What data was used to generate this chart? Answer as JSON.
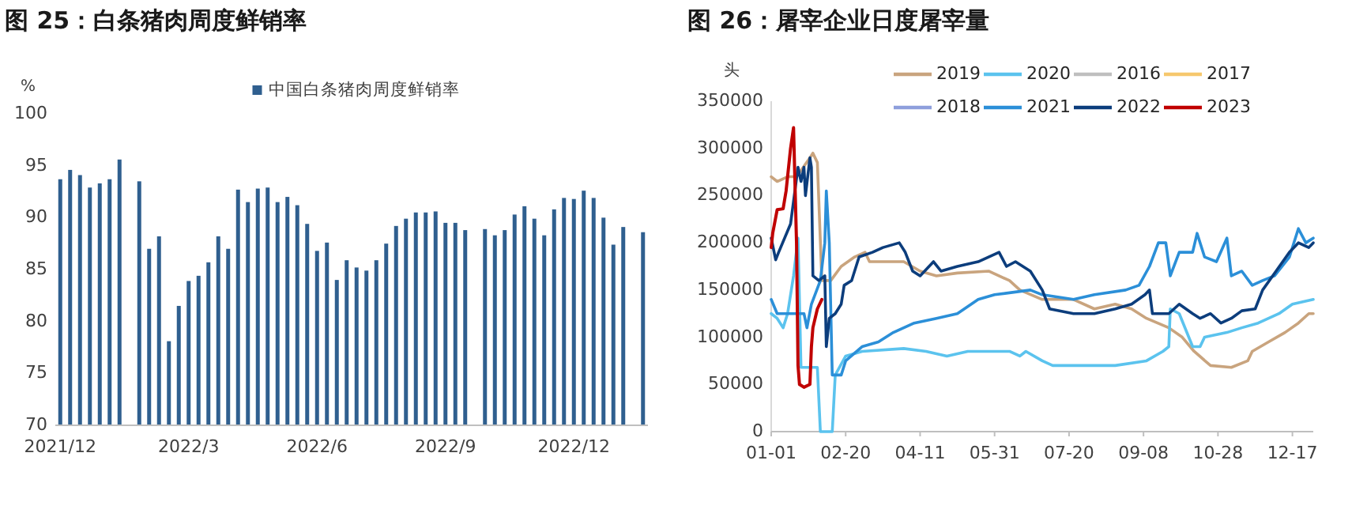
{
  "chart_data": [
    {
      "type": "bar",
      "title": "图 25：白条猪肉周度鲜销率",
      "ylabel": "%",
      "legend": "top",
      "categories": [
        "2021/12",
        null,
        null,
        null,
        null,
        null,
        null,
        null,
        null,
        null,
        null,
        null,
        null,
        "2022/3",
        null,
        null,
        null,
        null,
        null,
        null,
        null,
        null,
        null,
        null,
        null,
        null,
        "2022/6",
        null,
        null,
        null,
        null,
        null,
        null,
        null,
        null,
        null,
        null,
        null,
        null,
        "2022/9",
        null,
        null,
        null,
        null,
        null,
        null,
        null,
        null,
        null,
        null,
        null,
        null,
        "2022/12",
        null,
        null,
        null,
        null,
        null,
        null,
        null
      ],
      "series": [
        {
          "name": "中国白条猪肉周度鲜销率",
          "color": "#2f5f8f",
          "values": [
            93.7,
            94.6,
            94.1,
            92.9,
            93.3,
            93.7,
            95.6,
            null,
            93.5,
            87.0,
            88.2,
            78.1,
            81.5,
            83.9,
            84.4,
            85.7,
            88.2,
            87.0,
            92.7,
            91.5,
            92.8,
            92.9,
            91.5,
            92.0,
            91.2,
            89.4,
            86.8,
            87.6,
            84.0,
            85.9,
            85.2,
            84.9,
            85.9,
            87.5,
            89.2,
            89.9,
            90.5,
            90.5,
            90.6,
            89.5,
            89.5,
            88.8,
            null,
            88.9,
            88.3,
            88.8,
            90.3,
            91.1,
            89.9,
            88.3,
            90.8,
            91.9,
            91.8,
            92.6,
            91.9,
            90.0,
            87.4,
            89.1,
            null,
            88.6
          ]
        }
      ],
      "ylim": [
        70,
        100
      ],
      "yticks": [
        70,
        75,
        80,
        85,
        90,
        95,
        100
      ]
    },
    {
      "type": "line",
      "title": "图 26：屠宰企业日度屠宰量",
      "ylabel": "头",
      "legend": "top",
      "xlim": [
        "--01-01",
        "--12-31"
      ],
      "xticks": [
        {
          "value": "--01-01",
          "label": "01-01"
        },
        {
          "value": "--02-20",
          "label": "02-20"
        },
        {
          "value": "--04-11",
          "label": "04-11"
        },
        {
          "value": "--05-31",
          "label": "05-31"
        },
        {
          "value": "--07-20",
          "label": "07-20"
        },
        {
          "value": "--09-08",
          "label": "09-08"
        },
        {
          "value": "--10-28",
          "label": "10-28"
        },
        {
          "value": "--12-17",
          "label": "12-17"
        }
      ],
      "ylim": [
        0,
        350000
      ],
      "yticks": [
        0,
        50000,
        100000,
        150000,
        200000,
        250000,
        300000,
        350000
      ],
      "series": [
        {
          "name": "2019",
          "color": "#c9a47e",
          "x": [
            "--01-01",
            "--01-05",
            "--01-12",
            "--01-18",
            "--01-27",
            "--01-29",
            "--02-01",
            "--02-04",
            "--02-10",
            "--02-17",
            "--02-26",
            "--03-05",
            "--03-08",
            "--03-31",
            "--04-11",
            "--04-22",
            "--05-06",
            "--05-27",
            "--06-10",
            "--06-17",
            "--07-02",
            "--07-23",
            "--08-06",
            "--08-20",
            "--08-31",
            "--09-10",
            "--09-25",
            "--10-04",
            "--10-12",
            "--10-23",
            "--11-06",
            "--11-17",
            "--11-20",
            "--12-01",
            "--12-12",
            "--12-21",
            "--12-28",
            "--12-31"
          ],
          "values": [
            270000,
            265000,
            270000,
            270000,
            290000,
            295000,
            285000,
            160000,
            160000,
            175000,
            185000,
            190000,
            180000,
            180000,
            170000,
            165000,
            168000,
            170000,
            160000,
            150000,
            140000,
            140000,
            130000,
            135000,
            130000,
            120000,
            110000,
            100000,
            85000,
            70000,
            68000,
            75000,
            85000,
            95000,
            105000,
            115000,
            125000,
            125000
          ]
        },
        {
          "name": "2020",
          "color": "#5bc3ee",
          "x": [
            "--01-01",
            "--01-05",
            "--01-09",
            "--01-12",
            "--01-16",
            "--01-19",
            "--01-21",
            "--02-01",
            "--02-03",
            "--02-11",
            "--02-13",
            "--02-20",
            "--03-03",
            "--03-31",
            "--04-15",
            "--04-29",
            "--05-13",
            "--06-10",
            "--06-17",
            "--06-21",
            "--07-02",
            "--07-09",
            "--08-20",
            "--09-10",
            "--09-21",
            "--09-25",
            "--09-26",
            "--10-02",
            "--10-11",
            "--10-16",
            "--10-19",
            "--11-03",
            "--11-13",
            "--11-24",
            "--12-08",
            "--12-17",
            "--12-31"
          ],
          "values": [
            125000,
            120000,
            110000,
            125000,
            165000,
            205000,
            68000,
            68000,
            0,
            0,
            60000,
            80000,
            85000,
            88000,
            85000,
            80000,
            85000,
            85000,
            80000,
            85000,
            75000,
            70000,
            70000,
            75000,
            85000,
            90000,
            130000,
            125000,
            90000,
            90000,
            100000,
            105000,
            110000,
            115000,
            125000,
            135000,
            140000
          ]
        },
        {
          "name": "2016",
          "color": "#bfbfbf"
        },
        {
          "name": "2017",
          "color": "#f6c86e"
        },
        {
          "name": "2018",
          "color": "#8e9fdc"
        },
        {
          "name": "2021",
          "color": "#2b8fd8",
          "x": [
            "--01-01",
            "--01-05",
            "--01-16",
            "--01-23",
            "--01-25",
            "--01-28",
            "--02-03",
            "--02-06",
            "--02-07",
            "--02-09",
            "--02-11",
            "--02-17",
            "--02-20",
            "--03-03",
            "--03-14",
            "--03-24",
            "--04-07",
            "--04-22",
            "--05-06",
            "--05-20",
            "--05-31",
            "--06-24",
            "--07-02",
            "--07-23",
            "--08-06",
            "--08-27",
            "--09-05",
            "--09-12",
            "--09-18",
            "--09-23",
            "--09-26",
            "--10-02",
            "--10-11",
            "--10-14",
            "--10-19",
            "--10-27",
            "--11-03",
            "--11-06",
            "--11-13",
            "--11-20",
            "--11-27",
            "--12-05",
            "--12-15",
            "--12-21",
            "--12-26",
            "--12-31"
          ],
          "values": [
            140000,
            125000,
            125000,
            125000,
            110000,
            135000,
            160000,
            200000,
            255000,
            200000,
            60000,
            60000,
            75000,
            90000,
            95000,
            105000,
            115000,
            120000,
            125000,
            140000,
            145000,
            150000,
            145000,
            140000,
            145000,
            150000,
            155000,
            175000,
            200000,
            200000,
            165000,
            190000,
            190000,
            210000,
            185000,
            180000,
            205000,
            165000,
            170000,
            155000,
            160000,
            165000,
            185000,
            215000,
            200000,
            205000
          ]
        },
        {
          "name": "2022",
          "color": "#0c3d7c",
          "x": [
            "--01-01",
            "--01-04",
            "--01-06",
            "--01-14",
            "--01-19",
            "--01-21",
            "--01-23",
            "--01-24",
            "--01-27",
            "--01-28",
            "--01-29",
            "--02-02",
            "--02-06",
            "--02-07",
            "--02-09",
            "--02-13",
            "--02-17",
            "--02-19",
            "--02-24",
            "--03-01",
            "--03-10",
            "--03-17",
            "--03-28",
            "--04-01",
            "--04-06",
            "--04-11",
            "--04-20",
            "--04-25",
            "--05-06",
            "--05-20",
            "--06-03",
            "--06-08",
            "--06-14",
            "--06-24",
            "--07-02",
            "--07-07",
            "--07-23",
            "--08-06",
            "--08-20",
            "--08-31",
            "--09-09",
            "--09-12",
            "--09-14",
            "--09-25",
            "--10-02",
            "--10-11",
            "--10-16",
            "--10-23",
            "--10-30",
            "--11-06",
            "--11-13",
            "--11-22",
            "--11-27",
            "--12-06",
            "--12-15",
            "--12-21",
            "--12-28",
            "--12-31"
          ],
          "values": [
            205000,
            182000,
            190000,
            220000,
            280000,
            265000,
            280000,
            250000,
            290000,
            280000,
            165000,
            160000,
            165000,
            90000,
            120000,
            125000,
            135000,
            155000,
            160000,
            185000,
            190000,
            195000,
            200000,
            190000,
            170000,
            165000,
            180000,
            170000,
            175000,
            180000,
            190000,
            175000,
            180000,
            170000,
            150000,
            130000,
            125000,
            125000,
            130000,
            135000,
            145000,
            150000,
            125000,
            125000,
            135000,
            125000,
            120000,
            125000,
            115000,
            120000,
            128000,
            130000,
            150000,
            170000,
            190000,
            200000,
            195000,
            200000
          ]
        },
        {
          "name": "2023",
          "color": "#c00000",
          "x": [
            "--01-01",
            "--01-02",
            "--01-05",
            "--01-09",
            "--01-11",
            "--01-14",
            "--01-16",
            "--01-18",
            "--01-19",
            "--01-20",
            "--01-23",
            "--01-27",
            "--01-28",
            "--01-29",
            "--02-01",
            "--02-04"
          ],
          "values": [
            195000,
            210000,
            235000,
            236000,
            255000,
            300000,
            322000,
            200000,
            70000,
            50000,
            47000,
            50000,
            90000,
            110000,
            130000,
            140000
          ]
        }
      ]
    }
  ]
}
